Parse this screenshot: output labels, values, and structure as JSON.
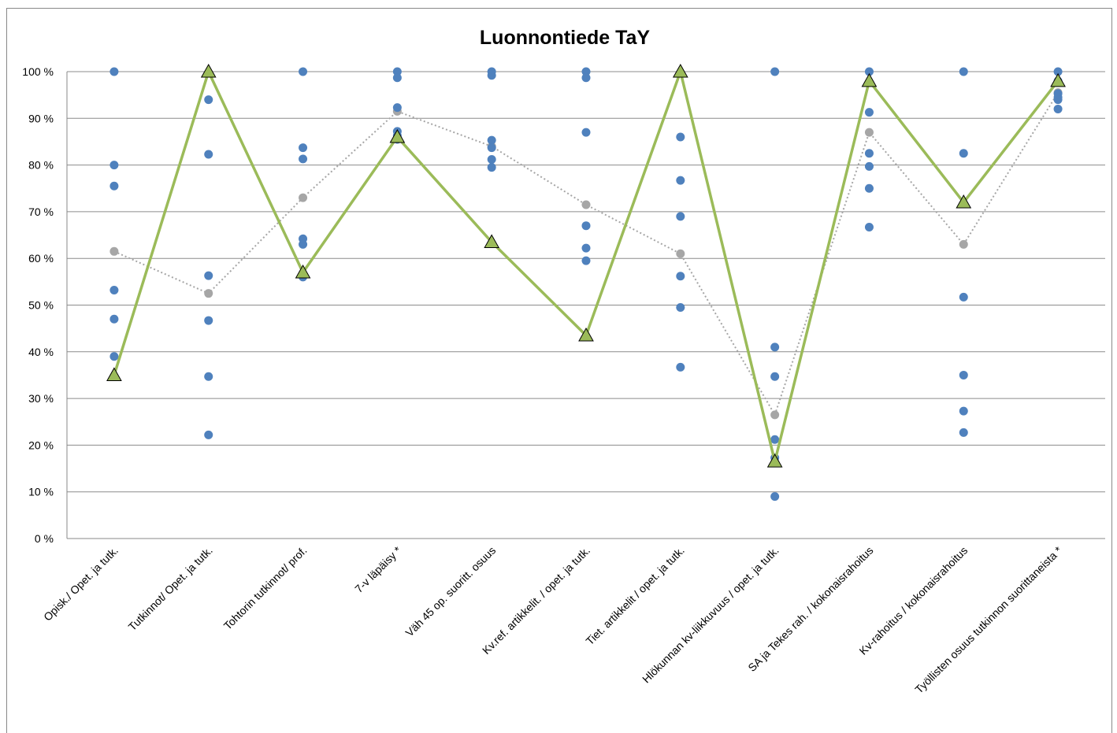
{
  "chart_data": {
    "type": "line",
    "title": "Luonnontiede  TaY",
    "categories": [
      "Opisk./ Opet. ja tutk.",
      "Tutkinnot/ Opet. ja tutk.",
      "Tohtorin tutkinnot/ prof.",
      "7-v läpäisy *",
      "Väh 45 op. suoritt. osuus",
      "Kv.ref. artikkelit. / opet. ja tutk.",
      "Tiet. artikkelit / opet. ja tutk.",
      "Hlökunnan kv-liikkuvuus / opet. ja tutk.",
      "SA ja Tekes rah. / kokonaisrahoitus",
      "Kv-rahoitus / kokonaisrahoitus",
      "Työllisten osuus tutkinnon suorittaneista *"
    ],
    "series": [
      {
        "color": "#a6a6a6",
        "line": "dotted",
        "marker": "circle",
        "values": [
          61.5,
          52.5,
          73,
          91.5,
          84,
          71.5,
          61,
          26.5,
          87,
          63,
          95.5
        ]
      },
      {
        "color": "#4f81bd",
        "line": "none",
        "marker": "circle",
        "values": [
          100,
          94,
          100,
          100,
          100,
          100,
          86,
          100,
          100,
          100,
          100
        ]
      },
      {
        "color": "#4f81bd",
        "line": "none",
        "marker": "circle",
        "values": [
          80,
          82.3,
          83.7,
          98.7,
          99.2,
          98.7,
          76.7,
          41,
          91.3,
          82.5,
          98
        ]
      },
      {
        "color": "#4f81bd",
        "line": "none",
        "marker": "circle",
        "values": [
          75.5,
          56.3,
          81.3,
          92.3,
          85.3,
          87,
          69,
          34.7,
          82.5,
          51.7,
          95.3
        ]
      },
      {
        "color": "#4f81bd",
        "line": "none",
        "marker": "circle",
        "values": [
          53.2,
          46.7,
          64.2,
          87.2,
          83.7,
          67,
          56.2,
          21.2,
          79.7,
          35,
          94.5
        ]
      },
      {
        "color": "#4f81bd",
        "line": "none",
        "marker": "circle",
        "values": [
          47,
          34.7,
          63,
          86.3,
          81.2,
          62.2,
          49.5,
          17.3,
          75,
          27.3,
          94
        ]
      },
      {
        "color": "#4f81bd",
        "line": "none",
        "marker": "circle",
        "values": [
          39,
          22.2,
          56,
          85.5,
          79.5,
          59.5,
          36.7,
          9,
          66.7,
          22.7,
          92
        ]
      },
      {
        "color": "#9bbb59",
        "line": "solid",
        "marker": "triangle",
        "values": [
          35,
          100,
          57,
          86,
          63.5,
          43.5,
          100,
          16.5,
          98,
          72,
          98
        ]
      }
    ],
    "ylim": [
      0,
      100
    ],
    "yticks": [
      {
        "value": 0,
        "label": "0 %"
      },
      {
        "value": 10,
        "label": "10 %"
      },
      {
        "value": 20,
        "label": "20 %"
      },
      {
        "value": 30,
        "label": "30 %"
      },
      {
        "value": 40,
        "label": "40 %"
      },
      {
        "value": 50,
        "label": "50 %"
      },
      {
        "value": 60,
        "label": "60 %"
      },
      {
        "value": 70,
        "label": "70 %"
      },
      {
        "value": 80,
        "label": "80 %"
      },
      {
        "value": 90,
        "label": "90 %"
      },
      {
        "value": 100,
        "label": "100 %"
      }
    ],
    "grid": true
  }
}
